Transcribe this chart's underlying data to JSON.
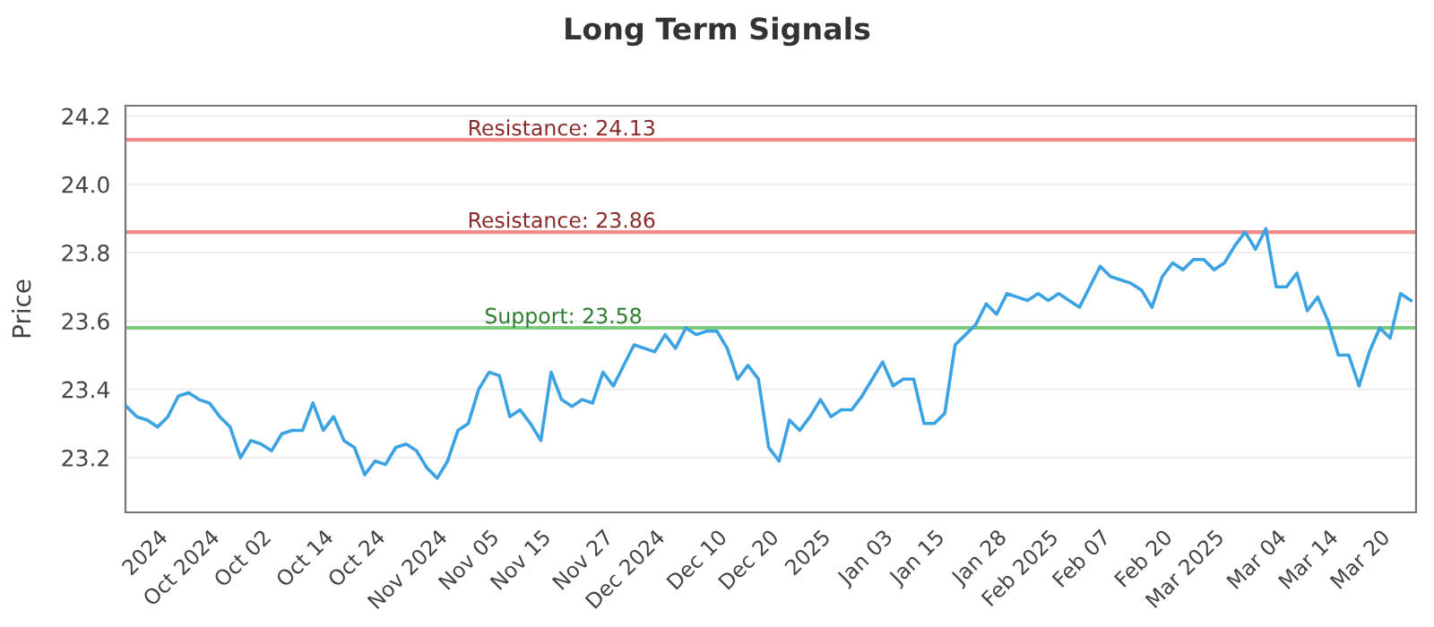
{
  "chart_data": {
    "type": "line",
    "title": "Long Term Signals",
    "ylabel": "Price",
    "series": [
      {
        "color": "#3ba3e4",
        "values": [
          23.35,
          23.32,
          23.31,
          23.29,
          23.32,
          23.38,
          23.39,
          23.37,
          23.36,
          23.32,
          23.29,
          23.2,
          23.25,
          23.24,
          23.22,
          23.27,
          23.28,
          23.28,
          23.36,
          23.28,
          23.32,
          23.25,
          23.23,
          23.15,
          23.19,
          23.18,
          23.23,
          23.24,
          23.22,
          23.17,
          23.14,
          23.19,
          23.28,
          23.3,
          23.4,
          23.45,
          23.44,
          23.32,
          23.34,
          23.3,
          23.25,
          23.45,
          23.37,
          23.35,
          23.37,
          23.36,
          23.45,
          23.41,
          23.47,
          23.53,
          23.52,
          23.51,
          23.56,
          23.52,
          23.58,
          23.56,
          23.57,
          23.57,
          23.52,
          23.43,
          23.47,
          23.43,
          23.23,
          23.19,
          23.31,
          23.28,
          23.32,
          23.37,
          23.32,
          23.34,
          23.34,
          23.38,
          23.43,
          23.48,
          23.41,
          23.43,
          23.43,
          23.3,
          23.3,
          23.33,
          23.53,
          23.56,
          23.59,
          23.65,
          23.62,
          23.68,
          23.67,
          23.66,
          23.68,
          23.66,
          23.68,
          23.66,
          23.64,
          23.7,
          23.76,
          23.73,
          23.72,
          23.71,
          23.69,
          23.64,
          23.73,
          23.77,
          23.75,
          23.78,
          23.78,
          23.75,
          23.77,
          23.82,
          23.86,
          23.81,
          23.87,
          23.7,
          23.7,
          23.74,
          23.63,
          23.67,
          23.6,
          23.5,
          23.5,
          23.41,
          23.51,
          23.58,
          23.55,
          23.68,
          23.66
        ]
      }
    ],
    "categories": [
      null,
      null,
      null,
      "2024",
      null,
      null,
      null,
      null,
      "Oct 2024",
      null,
      null,
      null,
      null,
      "Oct 02",
      null,
      null,
      null,
      null,
      null,
      "Oct 14",
      null,
      null,
      null,
      null,
      "Oct 24",
      null,
      null,
      null,
      null,
      null,
      "Nov 2024",
      null,
      null,
      null,
      null,
      "Nov 05",
      null,
      null,
      null,
      null,
      "Nov 15",
      null,
      null,
      null,
      null,
      null,
      "Nov 27",
      null,
      null,
      null,
      null,
      "Dec 2024",
      null,
      null,
      null,
      null,
      null,
      "Dec 10",
      null,
      null,
      null,
      null,
      "Dec 20",
      null,
      null,
      null,
      null,
      "2025",
      null,
      null,
      null,
      null,
      null,
      "Jan 03",
      null,
      null,
      null,
      null,
      "Jan 15",
      null,
      null,
      null,
      null,
      null,
      "Jan 28",
      null,
      null,
      null,
      null,
      "Feb 2025",
      null,
      null,
      null,
      null,
      "Feb 07",
      null,
      null,
      null,
      null,
      null,
      "Feb 20",
      null,
      null,
      null,
      null,
      "Mar 2025",
      null,
      null,
      null,
      null,
      null,
      "Mar 04",
      null,
      null,
      null,
      null,
      "Mar 14",
      null,
      null,
      null,
      null,
      "Mar 20",
      null,
      null,
      null
    ],
    "ylim": [
      23.04,
      24.23
    ],
    "yticks": [
      {
        "value": 23.2,
        "label": "23.2"
      },
      {
        "value": 23.4,
        "label": "23.4"
      },
      {
        "value": 23.6,
        "label": "23.6"
      },
      {
        "value": 23.8,
        "label": "23.8"
      },
      {
        "value": 24.0,
        "label": "24.0"
      },
      {
        "value": 24.2,
        "label": "24.2"
      }
    ],
    "grid": "y",
    "ref_lines": [
      {
        "axis": "y",
        "value": 24.13,
        "label": "Resistance: 24.13",
        "color": "#f08a8a"
      },
      {
        "axis": "y",
        "value": 23.86,
        "label": "Resistance: 23.86",
        "color": "#f08a8a"
      },
      {
        "axis": "y",
        "value": 23.58,
        "label": "Support: 23.58",
        "color": "#7ccb7c"
      }
    ]
  }
}
